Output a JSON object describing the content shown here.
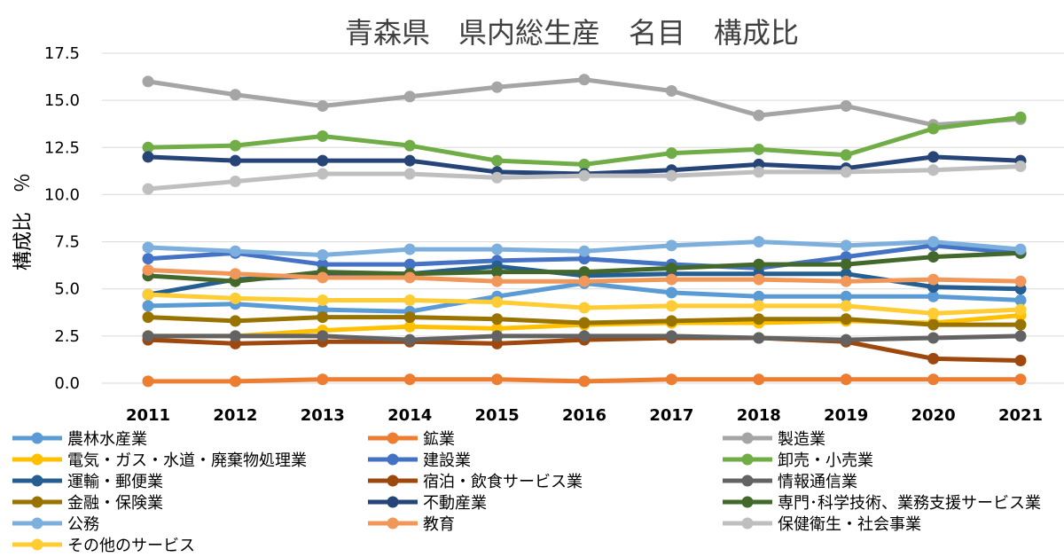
{
  "chart_data": {
    "type": "line",
    "title": "青森県　県内総生産　名目　構成比",
    "xlabel": "",
    "ylabel": "構成比　％",
    "ylim": [
      0,
      17.5
    ],
    "yticks": [
      "0.0",
      "2.5",
      "5.0",
      "7.5",
      "10.0",
      "12.5",
      "15.0",
      "17.5"
    ],
    "grid": true,
    "legend_position": "bottom",
    "x": [
      "2011",
      "2012",
      "2013",
      "2014",
      "2015",
      "2016",
      "2017",
      "2018",
      "2019",
      "2020",
      "2021"
    ],
    "series": [
      {
        "name": "農林水産業",
        "color": "#5B9BD5",
        "values": [
          4.1,
          4.2,
          3.9,
          3.8,
          4.6,
          5.3,
          4.8,
          4.6,
          4.6,
          4.6,
          4.4
        ]
      },
      {
        "name": "鉱業",
        "color": "#ED7D31",
        "values": [
          0.1,
          0.1,
          0.2,
          0.2,
          0.2,
          0.1,
          0.2,
          0.2,
          0.2,
          0.2,
          0.2
        ]
      },
      {
        "name": "製造業",
        "color": "#A5A5A5",
        "values": [
          16.0,
          15.3,
          14.7,
          15.2,
          15.7,
          16.1,
          15.5,
          14.2,
          14.7,
          13.7,
          14.0
        ]
      },
      {
        "name": "電気・ガス・水道・廃棄物処理業",
        "color": "#FFC000",
        "values": [
          2.5,
          2.5,
          2.8,
          3.0,
          2.9,
          3.1,
          3.2,
          3.2,
          3.3,
          3.2,
          3.6
        ]
      },
      {
        "name": " 建設業",
        "color": "#4472C4",
        "values": [
          6.6,
          6.9,
          6.3,
          6.3,
          6.5,
          6.6,
          6.3,
          6.1,
          6.7,
          7.3,
          6.9
        ]
      },
      {
        "name": " 卸売・小売業",
        "color": "#70AD47",
        "values": [
          12.5,
          12.6,
          13.1,
          12.6,
          11.8,
          11.6,
          12.2,
          12.4,
          12.1,
          13.5,
          14.1
        ]
      },
      {
        "name": "運輸・郵便業",
        "color": "#255E91",
        "values": [
          4.7,
          5.5,
          5.7,
          5.8,
          6.2,
          5.7,
          5.8,
          5.8,
          5.8,
          5.1,
          5.0
        ]
      },
      {
        "name": "宿泊・飲食サービス業",
        "color": "#9E480E",
        "values": [
          2.3,
          2.1,
          2.2,
          2.2,
          2.1,
          2.3,
          2.4,
          2.4,
          2.2,
          1.3,
          1.2
        ]
      },
      {
        "name": "情報通信業",
        "color": "#636363",
        "values": [
          2.5,
          2.5,
          2.5,
          2.3,
          2.5,
          2.5,
          2.5,
          2.4,
          2.3,
          2.4,
          2.5
        ]
      },
      {
        "name": "金融・保険業",
        "color": "#997300",
        "values": [
          3.5,
          3.3,
          3.5,
          3.5,
          3.4,
          3.2,
          3.3,
          3.4,
          3.4,
          3.1,
          3.1
        ]
      },
      {
        "name": "不動産業",
        "color": "#264478",
        "values": [
          12.0,
          11.8,
          11.8,
          11.8,
          11.2,
          11.1,
          11.3,
          11.6,
          11.4,
          12.0,
          11.8
        ]
      },
      {
        "name": "専門･科学技術、業務支援サービス業",
        "color": "#43682B",
        "values": [
          5.7,
          5.4,
          5.9,
          5.8,
          5.9,
          5.9,
          6.1,
          6.3,
          6.3,
          6.7,
          6.9
        ]
      },
      {
        "name": "公務",
        "color": "#7CAFDD",
        "values": [
          7.2,
          7.0,
          6.8,
          7.1,
          7.1,
          7.0,
          7.3,
          7.5,
          7.3,
          7.5,
          7.1
        ]
      },
      {
        "name": "教育",
        "color": "#F1975A",
        "values": [
          6.0,
          5.8,
          5.6,
          5.6,
          5.4,
          5.4,
          5.5,
          5.5,
          5.4,
          5.5,
          5.4
        ]
      },
      {
        "name": "保健衛生・社会事業",
        "color": "#BFBFBF",
        "values": [
          10.3,
          10.7,
          11.1,
          11.1,
          10.9,
          11.0,
          11.0,
          11.2,
          11.2,
          11.3,
          11.5
        ]
      },
      {
        "name": "その他のサービス",
        "color": "#FFCD33",
        "values": [
          4.7,
          4.5,
          4.4,
          4.4,
          4.3,
          4.0,
          4.1,
          4.1,
          4.1,
          3.7,
          3.9
        ]
      }
    ]
  }
}
